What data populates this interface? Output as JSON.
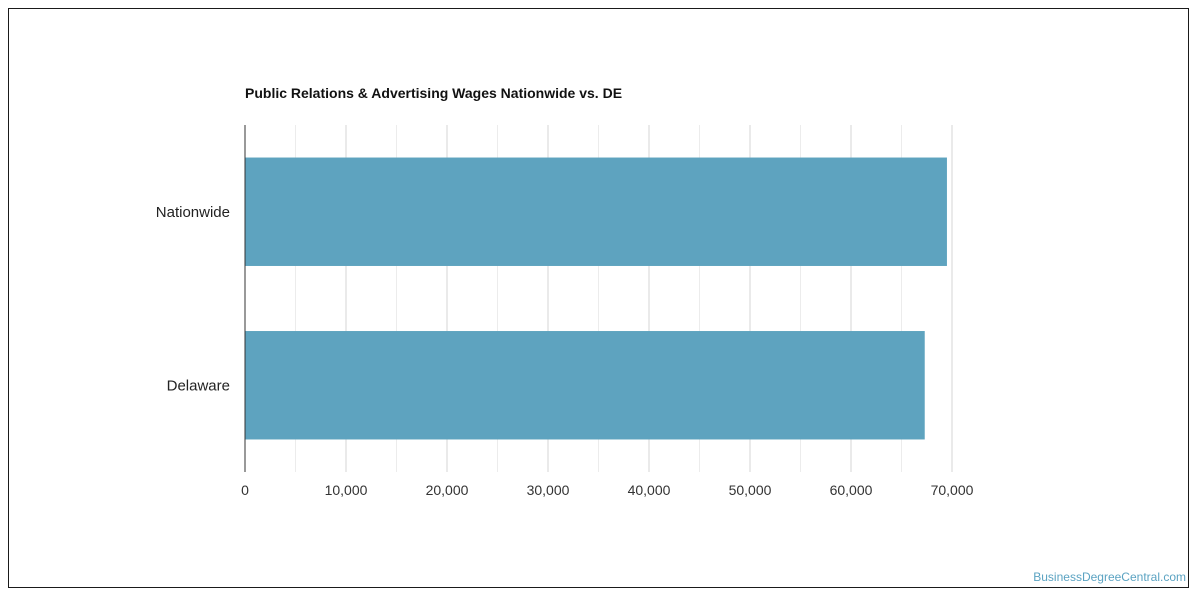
{
  "chart_data": {
    "type": "bar",
    "orientation": "horizontal",
    "title": "Public Relations & Advertising Wages Nationwide vs. DE",
    "categories": [
      "Nationwide",
      "Delaware"
    ],
    "values": [
      69500,
      67300
    ],
    "xlim": [
      0,
      70000
    ],
    "x_ticks": [
      "0",
      "10,000",
      "20,000",
      "30,000",
      "40,000",
      "50,000",
      "60,000",
      "70,000"
    ],
    "grid": true,
    "bar_color": "#5ea3bf",
    "gridline_color": "#dddddd"
  },
  "watermark": "BusinessDegreeCentral.com"
}
